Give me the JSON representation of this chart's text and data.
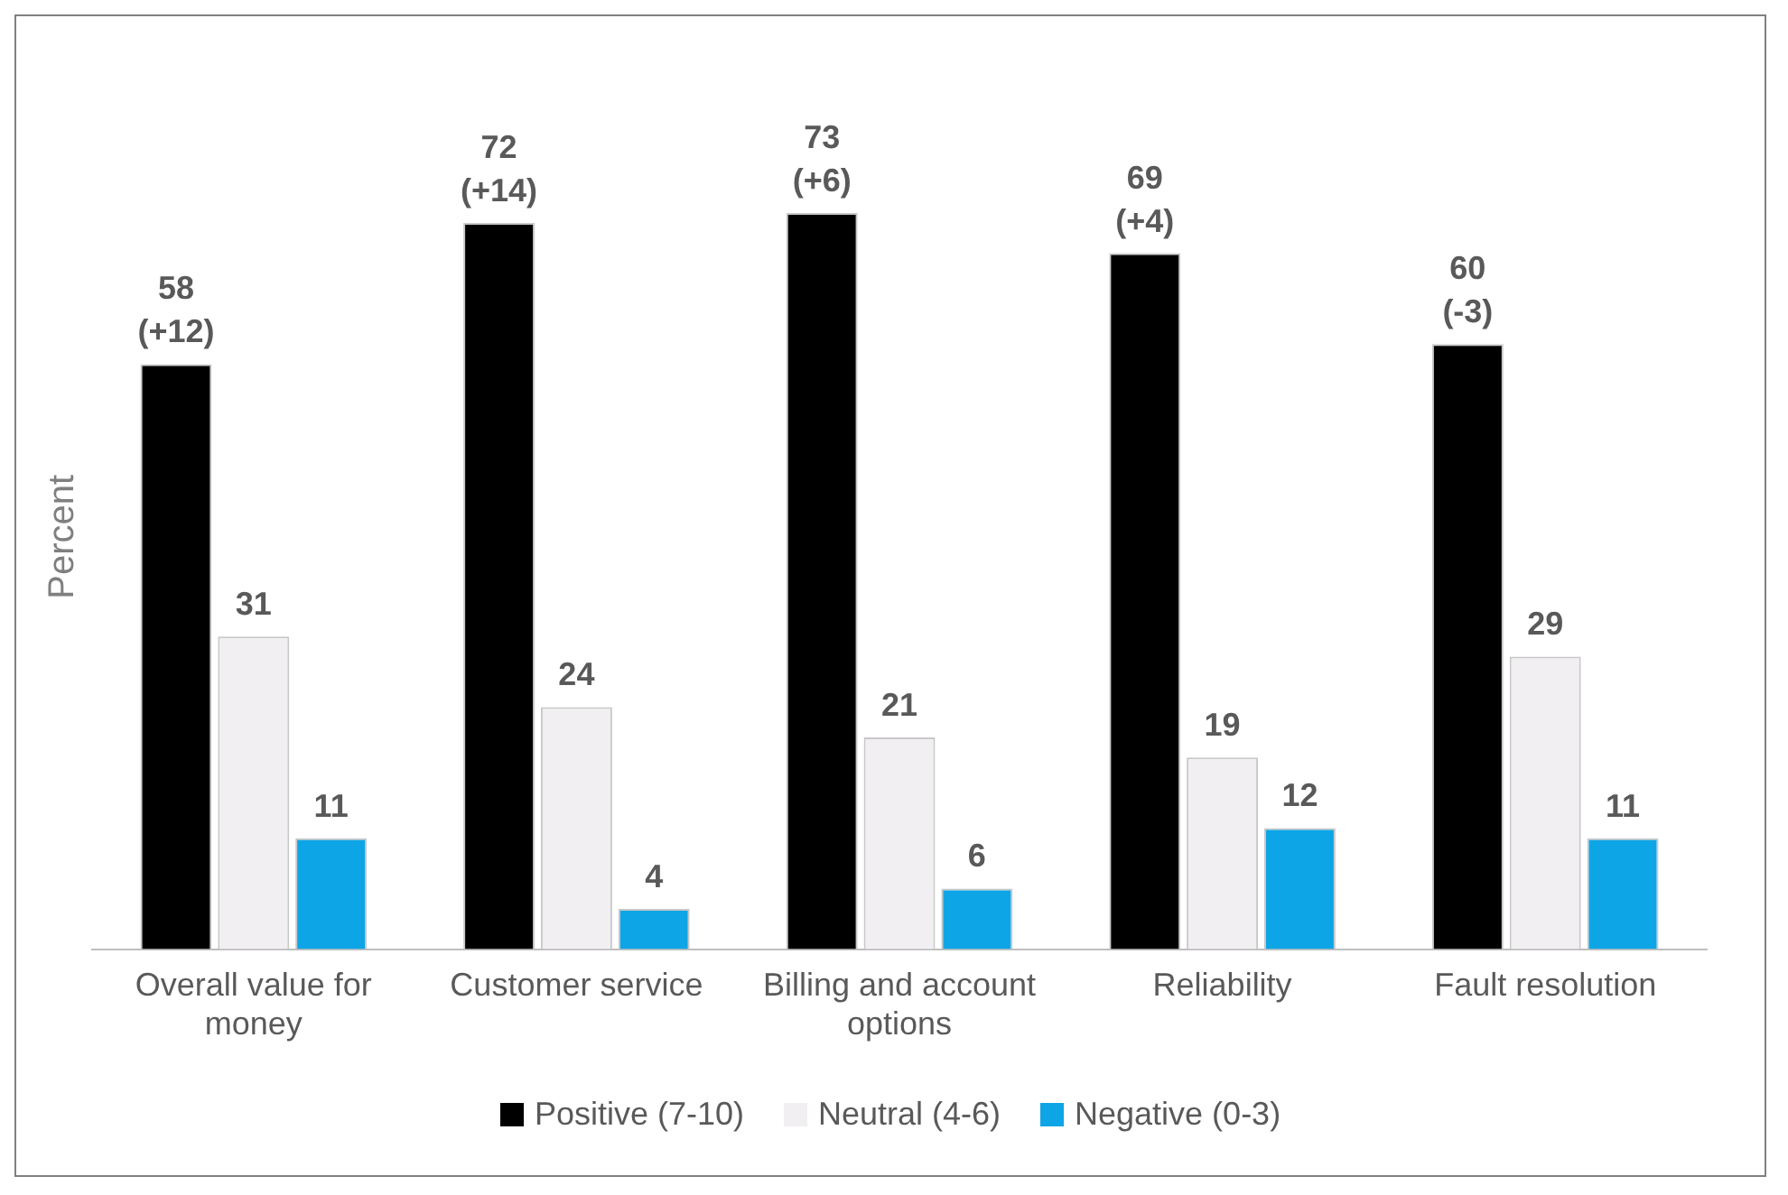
{
  "chart_data": {
    "type": "bar",
    "ylabel": "Percent",
    "categories": [
      "Overall value for money",
      "Customer service",
      "Billing and account options",
      "Reliability",
      "Fault resolution"
    ],
    "series": [
      {
        "name": "Positive (7-10)",
        "color": "#000000",
        "values": [
          58,
          72,
          73,
          69,
          60
        ],
        "value_labels": [
          "58 (+12)",
          "72 (+14)",
          "73 (+6)",
          "69 (+4)",
          "60 (-3)"
        ]
      },
      {
        "name": "Neutral (4-6)",
        "color": "#f2eff2",
        "values": [
          31,
          24,
          21,
          19,
          29
        ],
        "value_labels": [
          "31",
          "24",
          "21",
          "19",
          "29"
        ]
      },
      {
        "name": "Negative (0-3)",
        "color": "#0ea5e6",
        "values": [
          11,
          4,
          6,
          12,
          11
        ],
        "value_labels": [
          "11",
          "4",
          "6",
          "12",
          "11"
        ]
      }
    ],
    "legend": "bottom",
    "grid": false
  }
}
